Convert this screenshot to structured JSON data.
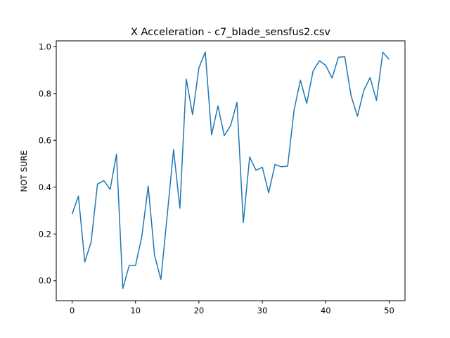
{
  "chart_data": {
    "type": "line",
    "title": "X Acceleration - c7_blade_sensfus2.csv",
    "xlabel": "",
    "ylabel": "NOT SURE",
    "xlim": [
      -2.5,
      52.5
    ],
    "ylim": [
      -0.085,
      1.025
    ],
    "xticks": [
      0,
      10,
      20,
      30,
      40,
      50
    ],
    "yticks": [
      0.0,
      0.2,
      0.4,
      0.6,
      0.8,
      1.0
    ],
    "grid": false,
    "legend": "none",
    "series": [
      {
        "color": "#1f77b4",
        "x": [
          0,
          1,
          2,
          3,
          4,
          5,
          6,
          7,
          8,
          9,
          10,
          11,
          12,
          13,
          14,
          15,
          16,
          17,
          18,
          19,
          20,
          21,
          22,
          23,
          24,
          25,
          26,
          27,
          28,
          29,
          30,
          31,
          32,
          33,
          34,
          35,
          36,
          37,
          38,
          39,
          40,
          41,
          42,
          43,
          44,
          45,
          46,
          47,
          48,
          49,
          50
        ],
        "values": [
          0.285,
          0.362,
          0.08,
          0.165,
          0.413,
          0.428,
          0.39,
          0.541,
          -0.033,
          0.065,
          0.065,
          0.19,
          0.405,
          0.11,
          0.005,
          0.28,
          0.56,
          0.31,
          0.862,
          0.71,
          0.91,
          0.977,
          0.623,
          0.747,
          0.62,
          0.663,
          0.762,
          0.248,
          0.529,
          0.472,
          0.485,
          0.376,
          0.497,
          0.487,
          0.49,
          0.728,
          0.857,
          0.758,
          0.896,
          0.94,
          0.92,
          0.866,
          0.955,
          0.957,
          0.79,
          0.703,
          0.813,
          0.868,
          0.77,
          0.976,
          0.946
        ]
      }
    ]
  }
}
